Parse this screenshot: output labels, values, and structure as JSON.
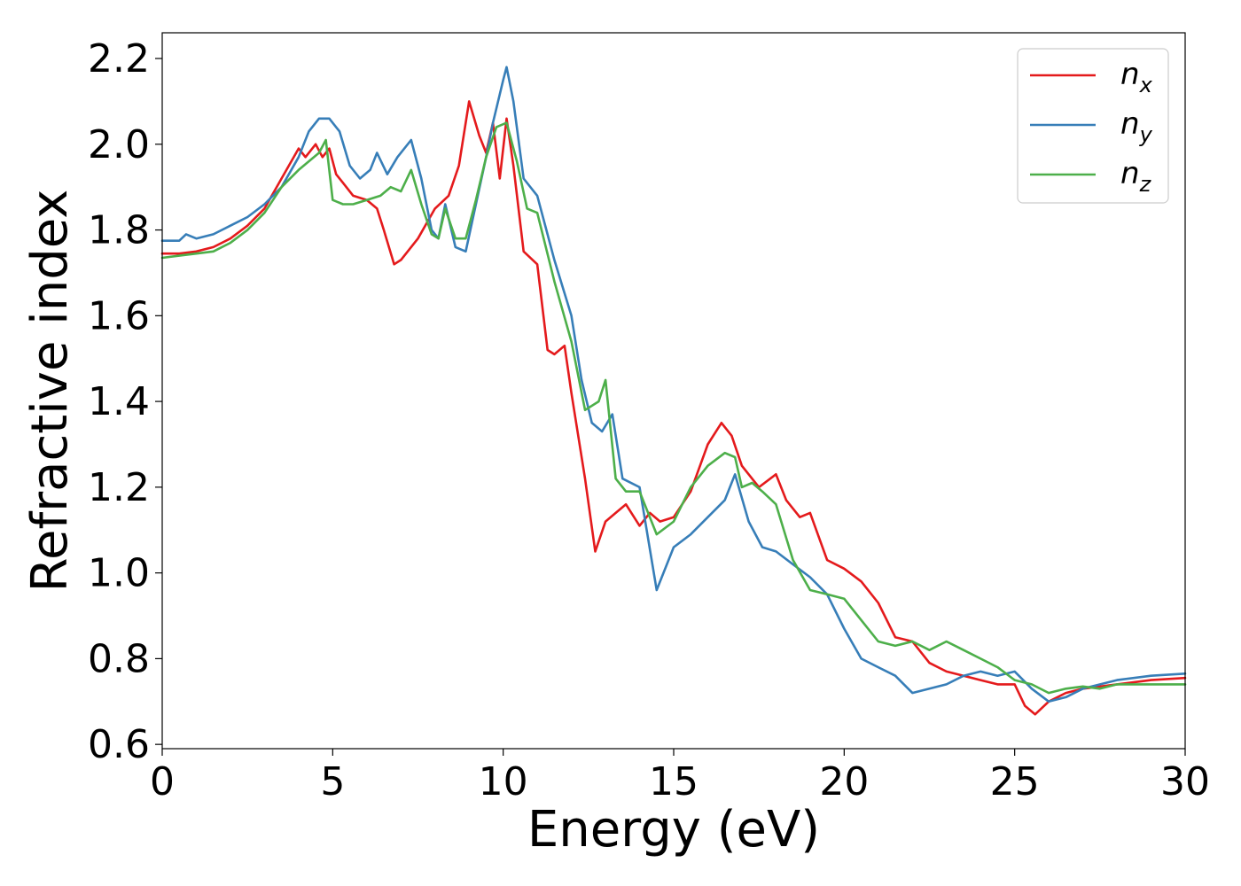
{
  "chart_data": {
    "type": "line",
    "xlabel": "Energy (eV)",
    "ylabel": "Refractive index",
    "xlim": [
      0,
      30
    ],
    "ylim": [
      0.59,
      2.26
    ],
    "xticks": [
      0,
      5,
      10,
      15,
      20,
      25,
      30
    ],
    "xtick_labels": [
      "0",
      "5",
      "10",
      "15",
      "20",
      "25",
      "30"
    ],
    "yticks": [
      0.6,
      0.8,
      1.0,
      1.2,
      1.4,
      1.6,
      1.8,
      2.0,
      2.2
    ],
    "ytick_labels": [
      "0.6",
      "0.8",
      "1.0",
      "1.2",
      "1.4",
      "1.6",
      "1.8",
      "2.0",
      "2.2"
    ],
    "grid": false,
    "legend_position": "top-right",
    "series": [
      {
        "name": "n",
        "subscript": "x",
        "color": "#e41a1c",
        "x": [
          0,
          0.5,
          1,
          1.5,
          2,
          2.5,
          3,
          3.5,
          4,
          4.2,
          4.5,
          4.7,
          4.9,
          5.1,
          5.3,
          5.6,
          6,
          6.3,
          6.5,
          6.8,
          7,
          7.5,
          8,
          8.4,
          8.7,
          9,
          9.3,
          9.5,
          9.7,
          9.9,
          10.1,
          10.3,
          10.6,
          11,
          11.3,
          11.5,
          11.8,
          12,
          12.4,
          12.7,
          13,
          13.3,
          13.6,
          14,
          14.3,
          14.6,
          15,
          15.5,
          16,
          16.4,
          16.7,
          17,
          17.5,
          18,
          18.3,
          18.7,
          19,
          19.5,
          20,
          20.5,
          21,
          21.5,
          22,
          22.5,
          23,
          23.5,
          24,
          24.5,
          25,
          25.3,
          25.6,
          26,
          26.5,
          27,
          28,
          29,
          30
        ],
        "y": [
          1.745,
          1.745,
          1.75,
          1.76,
          1.78,
          1.81,
          1.85,
          1.92,
          1.99,
          1.97,
          2.0,
          1.97,
          1.99,
          1.93,
          1.91,
          1.88,
          1.87,
          1.85,
          1.8,
          1.72,
          1.73,
          1.78,
          1.85,
          1.88,
          1.95,
          2.1,
          2.02,
          1.98,
          2.05,
          1.92,
          2.06,
          1.95,
          1.75,
          1.72,
          1.52,
          1.51,
          1.53,
          1.42,
          1.22,
          1.05,
          1.12,
          1.14,
          1.16,
          1.11,
          1.14,
          1.12,
          1.13,
          1.19,
          1.3,
          1.35,
          1.32,
          1.25,
          1.2,
          1.23,
          1.17,
          1.13,
          1.14,
          1.03,
          1.01,
          0.98,
          0.93,
          0.85,
          0.84,
          0.79,
          0.77,
          0.76,
          0.75,
          0.74,
          0.74,
          0.69,
          0.67,
          0.7,
          0.72,
          0.73,
          0.74,
          0.75,
          0.755
        ]
      },
      {
        "name": "n",
        "subscript": "y",
        "color": "#377eb8",
        "x": [
          0,
          0.5,
          0.7,
          1,
          1.5,
          2,
          2.5,
          3,
          3.5,
          4,
          4.3,
          4.6,
          4.9,
          5.2,
          5.5,
          5.8,
          6.1,
          6.3,
          6.6,
          6.9,
          7.3,
          7.6,
          7.9,
          8.1,
          8.3,
          8.6,
          8.9,
          9.2,
          9.5,
          9.7,
          10,
          10.1,
          10.3,
          10.6,
          11,
          11.5,
          12,
          12.3,
          12.6,
          12.9,
          13.2,
          13.5,
          14,
          14.5,
          15,
          15.5,
          16,
          16.5,
          16.8,
          17.2,
          17.6,
          18,
          18.5,
          19,
          19.5,
          20,
          20.5,
          21,
          21.5,
          22,
          22.5,
          23,
          23.5,
          24,
          24.5,
          25,
          25.5,
          26,
          26.5,
          27,
          28,
          29,
          30
        ],
        "y": [
          1.775,
          1.775,
          1.79,
          1.78,
          1.79,
          1.81,
          1.83,
          1.86,
          1.9,
          1.97,
          2.03,
          2.06,
          2.06,
          2.03,
          1.95,
          1.92,
          1.94,
          1.98,
          1.93,
          1.97,
          2.01,
          1.92,
          1.8,
          1.78,
          1.86,
          1.76,
          1.75,
          1.86,
          1.97,
          2.05,
          2.15,
          2.18,
          2.1,
          1.92,
          1.88,
          1.73,
          1.6,
          1.45,
          1.35,
          1.33,
          1.37,
          1.22,
          1.2,
          0.96,
          1.06,
          1.09,
          1.13,
          1.17,
          1.23,
          1.12,
          1.06,
          1.05,
          1.02,
          0.99,
          0.95,
          0.87,
          0.8,
          0.78,
          0.76,
          0.72,
          0.73,
          0.74,
          0.76,
          0.77,
          0.76,
          0.77,
          0.73,
          0.7,
          0.71,
          0.73,
          0.75,
          0.76,
          0.765
        ]
      },
      {
        "name": "n",
        "subscript": "z",
        "color": "#4daf4a",
        "x": [
          0,
          0.5,
          1,
          1.5,
          2,
          2.5,
          3,
          3.5,
          4,
          4.3,
          4.6,
          4.8,
          5,
          5.3,
          5.6,
          6,
          6.4,
          6.7,
          7,
          7.3,
          7.6,
          7.9,
          8.1,
          8.3,
          8.6,
          8.9,
          9.2,
          9.5,
          9.8,
          10.1,
          10.4,
          10.7,
          11,
          11.5,
          12,
          12.4,
          12.8,
          13,
          13.3,
          13.6,
          14,
          14.5,
          15,
          15.5,
          16,
          16.5,
          16.8,
          17,
          17.3,
          17.6,
          18,
          18.5,
          19,
          19.5,
          20,
          20.5,
          21,
          21.5,
          22,
          22.5,
          23,
          23.5,
          24,
          24.5,
          25,
          25.5,
          26,
          26.5,
          27,
          27.5,
          28,
          29,
          30
        ],
        "y": [
          1.735,
          1.74,
          1.745,
          1.75,
          1.77,
          1.8,
          1.84,
          1.9,
          1.94,
          1.96,
          1.98,
          2.01,
          1.87,
          1.86,
          1.86,
          1.87,
          1.88,
          1.9,
          1.89,
          1.94,
          1.86,
          1.79,
          1.78,
          1.85,
          1.78,
          1.78,
          1.87,
          1.97,
          2.04,
          2.05,
          1.96,
          1.85,
          1.84,
          1.68,
          1.54,
          1.38,
          1.4,
          1.45,
          1.22,
          1.19,
          1.19,
          1.09,
          1.12,
          1.2,
          1.25,
          1.28,
          1.27,
          1.2,
          1.21,
          1.19,
          1.16,
          1.03,
          0.96,
          0.95,
          0.94,
          0.89,
          0.84,
          0.83,
          0.84,
          0.82,
          0.84,
          0.82,
          0.8,
          0.78,
          0.75,
          0.74,
          0.72,
          0.73,
          0.735,
          0.73,
          0.74,
          0.74,
          0.74
        ]
      }
    ]
  }
}
